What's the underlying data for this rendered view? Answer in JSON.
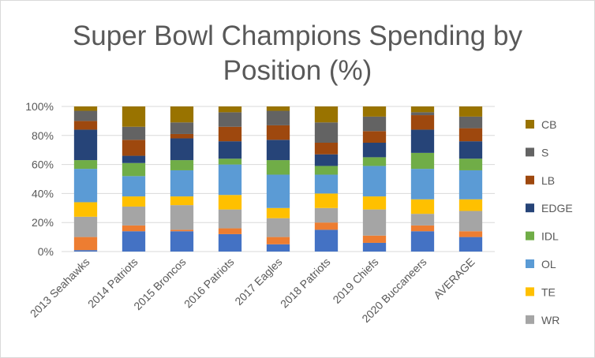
{
  "chart_data": {
    "type": "bar",
    "stacked": true,
    "title_line1": "Super Bowl Champions Spending by",
    "title_line2": "Position (%)",
    "categories": [
      "2013 Seahawks",
      "2014 Patriots",
      "2015 Broncos",
      "2016 Patriots",
      "2017 Eagles",
      "2018 Patriots",
      "2019 Chiefs",
      "2020 Buccaneers",
      "AVERAGE"
    ],
    "ylim": [
      0,
      100
    ],
    "yticks": [
      "0%",
      "20%",
      "40%",
      "60%",
      "80%",
      "100%"
    ],
    "grid": true,
    "legend_position": "right",
    "legend_order": [
      "CB",
      "S",
      "LB",
      "EDGE",
      "IDL",
      "OL",
      "TE",
      "WR"
    ],
    "series": [
      {
        "name": "",
        "color": "#4472c4",
        "values": [
          1,
          14,
          14,
          12,
          5,
          15,
          6,
          14,
          10
        ]
      },
      {
        "name": "",
        "color": "#ed7d31",
        "values": [
          9,
          4,
          1,
          4,
          5,
          5,
          5,
          4,
          4
        ]
      },
      {
        "name": "WR",
        "color": "#a5a5a5",
        "values": [
          14,
          13,
          17,
          13,
          13,
          10,
          18,
          8,
          14
        ]
      },
      {
        "name": "TE",
        "color": "#ffc000",
        "values": [
          10,
          7,
          6,
          10,
          7,
          10,
          9,
          10,
          8
        ]
      },
      {
        "name": "OL",
        "color": "#5b9bd5",
        "values": [
          23,
          14,
          18,
          21,
          23,
          13,
          21,
          21,
          20
        ]
      },
      {
        "name": "IDL",
        "color": "#70ad47",
        "values": [
          6,
          9,
          7,
          4,
          10,
          6,
          6,
          11,
          8
        ]
      },
      {
        "name": "EDGE",
        "color": "#264478",
        "values": [
          21,
          5,
          15,
          12,
          14,
          8,
          10,
          16,
          12
        ]
      },
      {
        "name": "LB",
        "color": "#9e480e",
        "values": [
          6,
          11,
          3,
          10,
          10,
          8,
          8,
          10,
          9
        ]
      },
      {
        "name": "S",
        "color": "#636363",
        "values": [
          7,
          9,
          8,
          10,
          10,
          14,
          10,
          2,
          8
        ]
      },
      {
        "name": "CB",
        "color": "#997300",
        "values": [
          3,
          14,
          11,
          4,
          3,
          11,
          7,
          4,
          7
        ]
      }
    ]
  }
}
